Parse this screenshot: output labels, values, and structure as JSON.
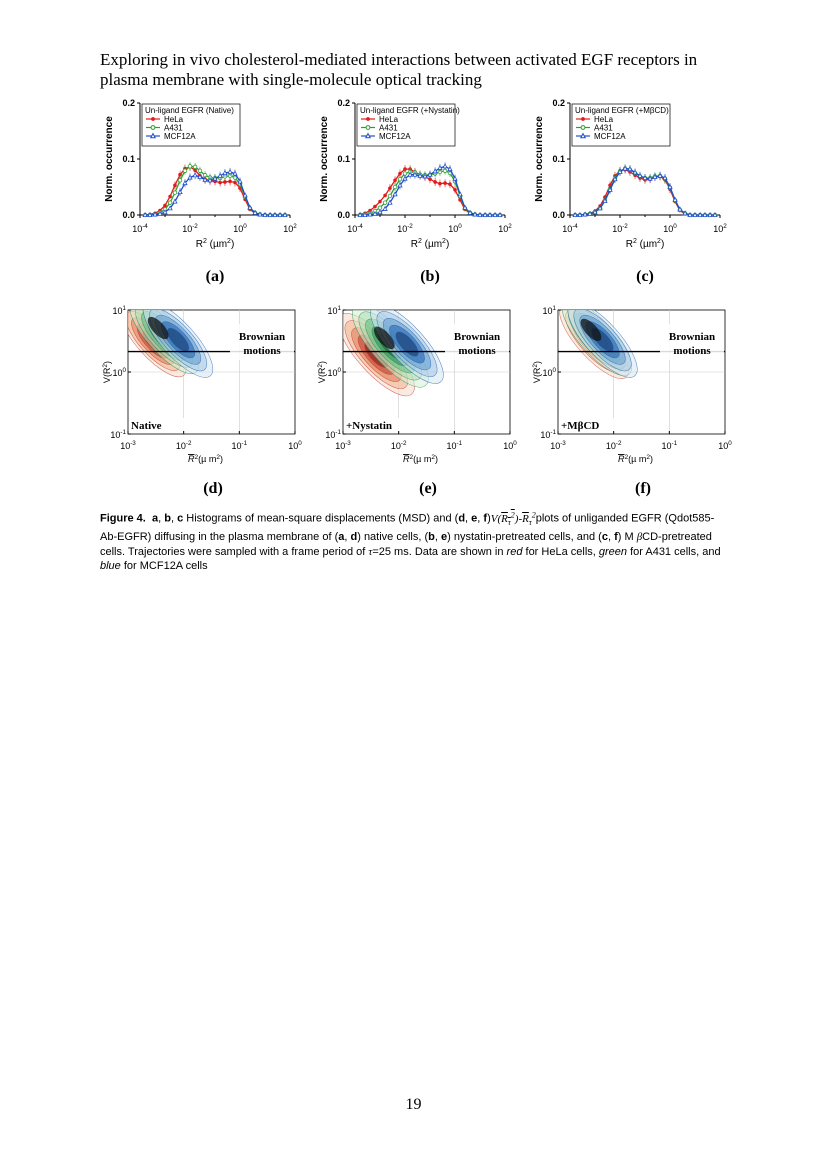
{
  "title": "Exploring in vivo cholesterol-mediated interactions between activated EGF receptors in plasma membrane with single-molecule optical tracking",
  "histograms": [
    {
      "id": "a",
      "letter": "(a)",
      "legend_title": "Un-ligand EGFR (Native)"
    },
    {
      "id": "b",
      "letter": "(b)",
      "legend_title": "Un-ligand EGFR (+Nystatin)"
    },
    {
      "id": "c",
      "letter": "(c)",
      "legend_title": "Un-ligand EGFR (+MβCD)"
    }
  ],
  "hist_axes": {
    "ylabel": "Norm. occurrence",
    "xlabel": "R",
    "xlabel_sup": "2",
    "xlabel_unit": " (µm",
    "xlabel_unit_sup": "2",
    "xlabel_close": ")",
    "yticks": [
      "0.0",
      "0.1",
      "0.2"
    ],
    "xtick_base": "10",
    "xtick_exps": [
      "-4",
      "-2",
      "0",
      "2"
    ]
  },
  "series": [
    {
      "name": "HeLa",
      "color": "#e31a1c",
      "marker": "filled-circle"
    },
    {
      "name": "A431",
      "color": "#2ca02c",
      "marker": "open-circle"
    },
    {
      "name": "MCF12A",
      "color": "#1f4fc8",
      "marker": "open-triangle"
    }
  ],
  "chart_data": [
    {
      "type": "line",
      "panel": "a",
      "title": "Un-ligand EGFR (Native)",
      "xscale": "log",
      "xlim": [
        0.0001,
        100
      ],
      "ylim": [
        0,
        0.2
      ],
      "xlabel": "R2 (µm2)",
      "ylabel": "Norm. occurrence",
      "x": [
        0.00016,
        0.00025,
        0.0004,
        0.00063,
        0.001,
        0.0016,
        0.0025,
        0.004,
        0.0063,
        0.01,
        0.016,
        0.025,
        0.04,
        0.063,
        0.1,
        0.16,
        0.25,
        0.4,
        0.63,
        1,
        1.6,
        2.5,
        4,
        6.3,
        10,
        16,
        25,
        40,
        63
      ],
      "series": [
        {
          "name": "HeLa",
          "values": [
            0,
            0.001,
            0.003,
            0.008,
            0.017,
            0.033,
            0.053,
            0.072,
            0.083,
            0.086,
            0.08,
            0.07,
            0.064,
            0.061,
            0.06,
            0.058,
            0.059,
            0.06,
            0.058,
            0.048,
            0.028,
            0.01,
            0.003,
            0.001,
            0,
            0,
            0,
            0,
            0
          ]
        },
        {
          "name": "A431",
          "values": [
            0,
            0,
            0.001,
            0.004,
            0.01,
            0.022,
            0.04,
            0.062,
            0.079,
            0.087,
            0.086,
            0.079,
            0.071,
            0.067,
            0.066,
            0.066,
            0.069,
            0.07,
            0.067,
            0.055,
            0.033,
            0.012,
            0.004,
            0.001,
            0,
            0,
            0,
            0,
            0
          ]
        },
        {
          "name": "MCF12A",
          "values": [
            0,
            0,
            0.001,
            0.002,
            0.005,
            0.012,
            0.024,
            0.041,
            0.057,
            0.067,
            0.071,
            0.068,
            0.063,
            0.062,
            0.065,
            0.07,
            0.075,
            0.077,
            0.074,
            0.06,
            0.035,
            0.013,
            0.004,
            0.001,
            0,
            0,
            0,
            0,
            0
          ]
        }
      ]
    },
    {
      "type": "line",
      "panel": "b",
      "title": "Un-ligand EGFR (+Nystatin)",
      "xscale": "log",
      "xlim": [
        0.0001,
        100
      ],
      "ylim": [
        0,
        0.2
      ],
      "xlabel": "R2 (µm2)",
      "ylabel": "Norm. occurrence",
      "x": [
        0.00016,
        0.00025,
        0.0004,
        0.00063,
        0.001,
        0.0016,
        0.0025,
        0.004,
        0.0063,
        0.01,
        0.016,
        0.025,
        0.04,
        0.063,
        0.1,
        0.16,
        0.25,
        0.4,
        0.63,
        1,
        1.6,
        2.5,
        4,
        6.3,
        10,
        16,
        25,
        40,
        63
      ],
      "series": [
        {
          "name": "HeLa",
          "values": [
            0.001,
            0.003,
            0.008,
            0.015,
            0.024,
            0.035,
            0.048,
            0.062,
            0.074,
            0.082,
            0.082,
            0.077,
            0.072,
            0.068,
            0.064,
            0.059,
            0.056,
            0.057,
            0.055,
            0.045,
            0.027,
            0.01,
            0.003,
            0.001,
            0,
            0,
            0,
            0,
            0
          ]
        },
        {
          "name": "A431",
          "values": [
            0,
            0.001,
            0.003,
            0.007,
            0.013,
            0.022,
            0.034,
            0.05,
            0.064,
            0.074,
            0.077,
            0.076,
            0.072,
            0.071,
            0.072,
            0.074,
            0.077,
            0.079,
            0.075,
            0.06,
            0.034,
            0.012,
            0.004,
            0.001,
            0,
            0,
            0,
            0,
            0
          ]
        },
        {
          "name": "MCF12A",
          "values": [
            0,
            0,
            0.001,
            0.002,
            0.005,
            0.011,
            0.022,
            0.037,
            0.053,
            0.065,
            0.072,
            0.072,
            0.07,
            0.069,
            0.072,
            0.078,
            0.084,
            0.087,
            0.082,
            0.065,
            0.037,
            0.013,
            0.004,
            0.001,
            0,
            0,
            0,
            0,
            0
          ]
        }
      ]
    },
    {
      "type": "line",
      "panel": "c",
      "title": "Un-ligand EGFR (+MβCD)",
      "xscale": "log",
      "xlim": [
        0.0001,
        100
      ],
      "ylim": [
        0,
        0.2
      ],
      "xlabel": "R2 (µm2)",
      "ylabel": "Norm. occurrence",
      "x": [
        0.00016,
        0.00025,
        0.0004,
        0.00063,
        0.001,
        0.0016,
        0.0025,
        0.004,
        0.0063,
        0.01,
        0.016,
        0.025,
        0.04,
        0.063,
        0.1,
        0.16,
        0.25,
        0.4,
        0.63,
        1,
        1.6,
        2.5,
        4,
        6.3,
        10,
        16,
        25,
        40,
        63
      ],
      "series": [
        {
          "name": "HeLa",
          "values": [
            0,
            0,
            0.001,
            0.003,
            0.007,
            0.016,
            0.032,
            0.053,
            0.07,
            0.079,
            0.081,
            0.077,
            0.071,
            0.066,
            0.063,
            0.064,
            0.068,
            0.069,
            0.063,
            0.046,
            0.024,
            0.008,
            0.002,
            0,
            0,
            0,
            0,
            0,
            0
          ]
        },
        {
          "name": "A431",
          "values": [
            0,
            0,
            0.001,
            0.002,
            0.005,
            0.012,
            0.026,
            0.046,
            0.066,
            0.078,
            0.083,
            0.081,
            0.075,
            0.069,
            0.066,
            0.066,
            0.069,
            0.07,
            0.065,
            0.049,
            0.026,
            0.009,
            0.003,
            0,
            0,
            0,
            0,
            0,
            0
          ]
        },
        {
          "name": "MCF12A",
          "values": [
            0,
            0,
            0.001,
            0.002,
            0.005,
            0.012,
            0.025,
            0.045,
            0.064,
            0.077,
            0.083,
            0.082,
            0.076,
            0.07,
            0.066,
            0.065,
            0.068,
            0.07,
            0.066,
            0.05,
            0.027,
            0.01,
            0.003,
            0,
            0,
            0,
            0,
            0,
            0
          ]
        }
      ]
    }
  ],
  "contours": [
    {
      "id": "d",
      "letter": "(d)",
      "condition": "Native"
    },
    {
      "id": "e",
      "letter": "(e)",
      "condition": "+Nystatin"
    },
    {
      "id": "f",
      "letter": "(f)",
      "condition": "+MβCD"
    }
  ],
  "contour_axes": {
    "brownian_line1": "Brownian",
    "brownian_line2": "motions",
    "ylabel": "V(R",
    "ylabel_sup": "2",
    "ylabel_close": ")",
    "xlabel": "R",
    "xlabel_sup": "2",
    "xlabel_unit": "(µ m",
    "xlabel_unit_sup": "2",
    "xlabel_close": ")",
    "xtick_base": "10",
    "xtick_exps": [
      "-3",
      "-2",
      "-1",
      "0"
    ],
    "ytick_base": "10",
    "ytick_exps": [
      "1",
      "0",
      "-1"
    ]
  },
  "caption": {
    "label": "Figure 4.",
    "a": "a",
    "b": "b",
    "c": "c",
    "d": "d",
    "e": "e",
    "f": "f",
    "t1": " Histograms of mean-square displacements (MSD) and (",
    "t1b": ", ",
    "t1c": ", ",
    "t2": ")",
    "formula_V": "V",
    "formula_open": "(",
    "formula_R": "R",
    "formula_tau": "τ",
    "formula_sq": "2",
    "formula_close": ")",
    "formula_dash": "-",
    "formula_R2": "R",
    "formula_tau2": "τ",
    "formula_sq2": "2",
    "t3": "plots of unliganded EGFR (Qdot585-Ab-EGFR) diffusing in the plasma membrane of (",
    "t3b": ", ",
    "t4": ") native cells, (",
    "t4b": ", ",
    "t5": ") nystatin-pretreated cells, and (",
    "t5b": ", ",
    "t6": ") M ",
    "beta": "β",
    "t7": "CD-pretreated cells. Trajectories were sampled with a frame period of ",
    "tau": "τ",
    "t8": "=25 ms. Data are shown in ",
    "red": "red",
    "t9": " for HeLa cells, ",
    "green": "green",
    "t10": " for A431 cells, and ",
    "blue": "blue",
    "t11": " for MCF12A cells"
  },
  "page_number": "19"
}
